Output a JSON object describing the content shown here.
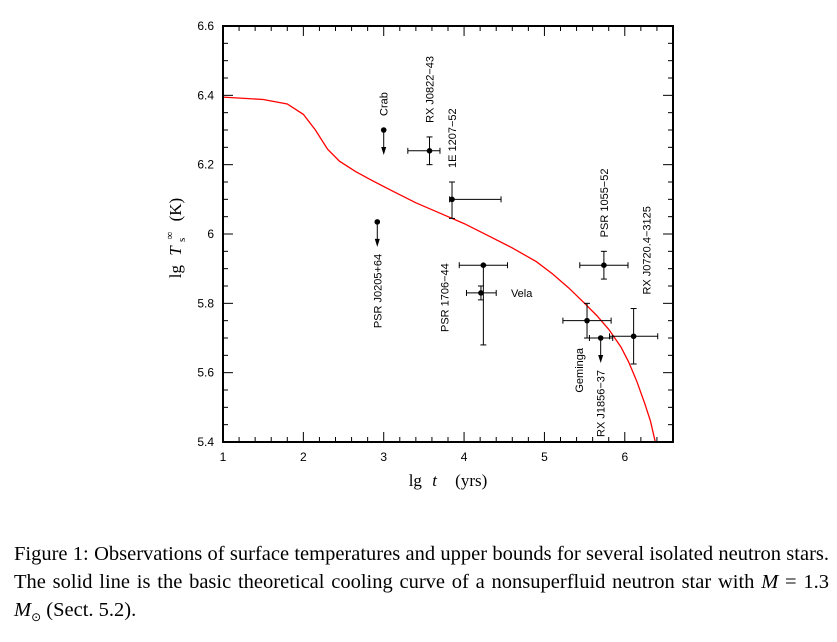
{
  "chart_data": {
    "type": "scatter",
    "title": "",
    "xlabel": "lg t (yrs)",
    "xlabel_parts": {
      "lg": "lg",
      "var": "t",
      "unit": "(yrs)"
    },
    "ylabel": "lg Ts∞ (K)",
    "ylabel_parts": {
      "lg": "lg",
      "var": "T",
      "sub": "s",
      "sup": "∞",
      "unit": "(K)"
    },
    "xlim": [
      1,
      6.6
    ],
    "ylim": [
      5.4,
      6.6
    ],
    "grid": false,
    "x_ticks": [
      1,
      2,
      3,
      4,
      5,
      6
    ],
    "x_tick_labels": [
      "1",
      "2",
      "3",
      "4",
      "5",
      "6"
    ],
    "y_ticks": [
      5.4,
      5.6,
      5.8,
      6.0,
      6.2,
      6.4,
      6.6
    ],
    "y_tick_labels": [
      "5.4",
      "5.6",
      "5.8",
      "6",
      "6.2",
      "6.4",
      "6.6"
    ],
    "curve": {
      "name": "basic theoretical cooling curve",
      "color": "#ff0000",
      "x": [
        1.0,
        1.5,
        1.8,
        2.0,
        2.15,
        2.3,
        2.45,
        2.65,
        2.85,
        3.1,
        3.4,
        3.7,
        4.0,
        4.3,
        4.6,
        4.9,
        5.1,
        5.3,
        5.5,
        5.65,
        5.8,
        5.95,
        6.05,
        6.15,
        6.25,
        6.32,
        6.38
      ],
      "y": [
        6.395,
        6.388,
        6.375,
        6.345,
        6.3,
        6.245,
        6.21,
        6.18,
        6.155,
        6.125,
        6.09,
        6.06,
        6.03,
        5.995,
        5.96,
        5.92,
        5.885,
        5.845,
        5.8,
        5.765,
        5.725,
        5.675,
        5.63,
        5.575,
        5.51,
        5.46,
        5.4
      ]
    },
    "points": [
      {
        "name": "Crab",
        "x": 3.0,
        "y": 6.3,
        "upper_bound": true,
        "label_pos": "above"
      },
      {
        "name": "RX J0822−43",
        "x": 3.57,
        "y": 6.24,
        "xerr": [
          3.3,
          3.7
        ],
        "yerr": [
          6.2,
          6.28
        ],
        "label_pos": "above"
      },
      {
        "name": "1E 1207−52",
        "x": 3.85,
        "y": 6.1,
        "xerr": [
          3.82,
          4.46
        ],
        "yerr": [
          6.045,
          6.15
        ],
        "label_pos": "above"
      },
      {
        "name": "PSR J0205+64",
        "x": 2.92,
        "y": 6.035,
        "upper_bound": true,
        "label_pos": "below"
      },
      {
        "name": "PSR 1706−44",
        "x": 4.24,
        "y": 5.91,
        "xerr": [
          3.94,
          4.54
        ],
        "yerr": [
          5.68,
          5.91
        ],
        "label_pos": "left"
      },
      {
        "name": "Vela",
        "x": 4.21,
        "y": 5.83,
        "xerr": [
          4.03,
          4.4
        ],
        "yerr": [
          5.81,
          5.85
        ],
        "label_pos": "right"
      },
      {
        "name": "PSR 1055−52",
        "x": 5.74,
        "y": 5.91,
        "xerr": [
          5.44,
          6.04
        ],
        "yerr": [
          5.87,
          5.95
        ],
        "label_pos": "above"
      },
      {
        "name": "Geminga",
        "x": 5.53,
        "y": 5.75,
        "xerr": [
          5.23,
          5.83
        ],
        "yerr": [
          5.7,
          5.8
        ],
        "label_pos": "below-left"
      },
      {
        "name": "RX J1856−37",
        "x": 5.7,
        "y": 5.7,
        "xerr": [
          5.56,
          5.85
        ],
        "upper_bound": true,
        "label_pos": "below"
      },
      {
        "name": "RX J0720.4−3125",
        "x": 6.11,
        "y": 5.705,
        "xerr": [
          5.81,
          6.41
        ],
        "yerr": [
          5.625,
          5.785
        ],
        "label_pos": "above-right"
      }
    ],
    "marker_color": "#000000",
    "curve_color": "#ff0000"
  },
  "caption": {
    "prefix": "Figure 1:",
    "text1": "Observations of surface temperatures and upper bounds for several isolated neutron stars. The solid line is the basic theoretical cooling curve of a nonsuperfluid neutron star with",
    "math_var": "M",
    "math_eq": " = 1.3 ",
    "math_mass": "M",
    "math_sun": "⊙",
    "text2": "(Sect. 5.2)."
  }
}
